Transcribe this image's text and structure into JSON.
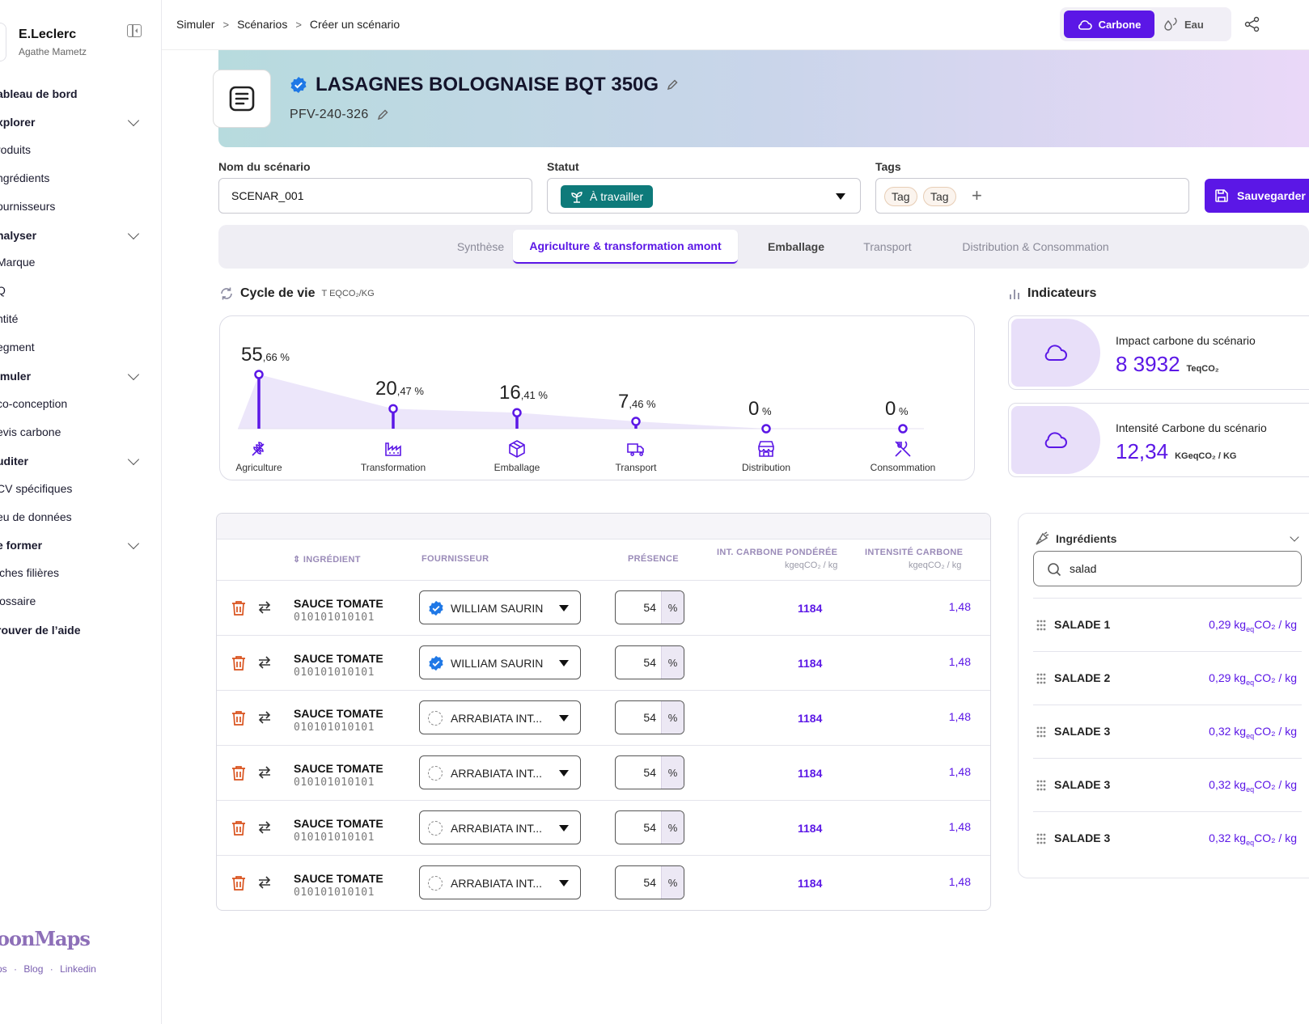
{
  "sidebar": {
    "brand": "E.Leclerc",
    "user": "Agathe Mametz",
    "items": [
      {
        "label": "ableau de bord",
        "type": "section-plain"
      },
      {
        "label": "xplorer",
        "type": "section"
      },
      {
        "label": "roduits",
        "type": "item"
      },
      {
        "label": "ngrédients",
        "type": "item"
      },
      {
        "label": "ournisseurs",
        "type": "item"
      },
      {
        "label": "nalyser",
        "type": "section"
      },
      {
        "label": "Marque",
        "type": "item"
      },
      {
        "label": "Q",
        "type": "item"
      },
      {
        "label": "ntité",
        "type": "item"
      },
      {
        "label": "egment",
        "type": "item"
      },
      {
        "label": "imuler",
        "type": "section"
      },
      {
        "label": "co-conception",
        "type": "item"
      },
      {
        "label": "evis carbone",
        "type": "item"
      },
      {
        "label": "uditer",
        "type": "section"
      },
      {
        "label": "CV spécifiques",
        "type": "item"
      },
      {
        "label": "eu de données",
        "type": "item"
      },
      {
        "label": "e former",
        "type": "section"
      },
      {
        "label": "iches filières",
        "type": "item"
      },
      {
        "label": "lossaire",
        "type": "item"
      },
      {
        "label": "rouver de l’aide",
        "type": "section-plain"
      }
    ],
    "footer_logo": "oonMaps",
    "footer_links": [
      "ps",
      "Blog",
      "Linkedin"
    ],
    "footer_sep": "·"
  },
  "topbar": {
    "breadcrumb": [
      "Simuler",
      "Scénarios",
      "Créer un scénario"
    ],
    "breadcrumb_sep": ">",
    "switch_carbone": "Carbone",
    "switch_eau": "Eau"
  },
  "product": {
    "title": "LASAGNES BOLOGNAISE BQT 350G",
    "code": "PFV-240-326"
  },
  "form": {
    "name_label": "Nom du scénario",
    "name_value": "SCENAR_001",
    "status_label": "Statut",
    "status_value": "À travailler",
    "tags_label": "Tags",
    "tags": [
      "Tag",
      "Tag"
    ],
    "tag_add": "+",
    "save_label": "Sauvegarder"
  },
  "tabs": [
    {
      "label": "Synthèse",
      "state": "muted"
    },
    {
      "label": "Agriculture & transformation amont",
      "state": "active"
    },
    {
      "label": "Emballage",
      "state": "dark"
    },
    {
      "label": "Transport",
      "state": "muted"
    },
    {
      "label": "Distribution & Consommation",
      "state": "muted"
    }
  ],
  "cycle": {
    "title": "Cycle de vie",
    "unit": "T EQCO₂/KG"
  },
  "chart_data": {
    "type": "area",
    "categories": [
      "Agriculture",
      "Transformation",
      "Emballage",
      "Transport",
      "Distribution",
      "Consommation"
    ],
    "values": [
      55.66,
      20.47,
      16.41,
      7.46,
      0,
      0
    ],
    "labels": [
      {
        "int": "55",
        "dec": ",66 %"
      },
      {
        "int": "20",
        "dec": ",47 %"
      },
      {
        "int": "16",
        "dec": ",41 %"
      },
      {
        "int": "7",
        "dec": ",46 %"
      },
      {
        "int": "0",
        "dec": " %"
      },
      {
        "int": "0",
        "dec": " %"
      }
    ],
    "icons": [
      "wheat-icon",
      "factory-icon",
      "package-icon",
      "truck-icon",
      "store-icon",
      "utensils-icon"
    ],
    "color": "#5b17e6",
    "fill": "#ece6fa"
  },
  "indicators": {
    "title": "Indicateurs",
    "cards": [
      {
        "label": "Impact carbone du scénario",
        "value": "8 3932",
        "unit": "TeqCO₂"
      },
      {
        "label": "Intensité Carbone du scénario",
        "value": "12,34",
        "unit": "KGeqCO₂ / KG"
      }
    ]
  },
  "table": {
    "headers": {
      "ingredient": "INGRÉDIENT",
      "fournisseur": "FOURNISSEUR",
      "presence": "PRÉSENCE",
      "pond": "INT. CARBONE PONDÉRÉE",
      "pond_unit": "kgeqCO₂  / kg",
      "intens": "INTENSITÉ CARBONE",
      "intens_unit": "kgeqCO₂ / kg"
    },
    "rows": [
      {
        "name": "SAUCE TOMATE",
        "code": "010101010101",
        "supplier": "WILLIAM SAURIN",
        "verified": true,
        "presence": "54",
        "pct": "%",
        "pond": "1184",
        "intens": "1,48"
      },
      {
        "name": "SAUCE TOMATE",
        "code": "010101010101",
        "supplier": "WILLIAM SAURIN",
        "verified": true,
        "presence": "54",
        "pct": "%",
        "pond": "1184",
        "intens": "1,48"
      },
      {
        "name": "SAUCE TOMATE",
        "code": "010101010101",
        "supplier": "ARRABIATA INT...",
        "verified": false,
        "presence": "54",
        "pct": "%",
        "pond": "1184",
        "intens": "1,48"
      },
      {
        "name": "SAUCE TOMATE",
        "code": "010101010101",
        "supplier": "ARRABIATA INT...",
        "verified": false,
        "presence": "54",
        "pct": "%",
        "pond": "1184",
        "intens": "1,48"
      },
      {
        "name": "SAUCE TOMATE",
        "code": "010101010101",
        "supplier": "ARRABIATA INT...",
        "verified": false,
        "presence": "54",
        "pct": "%",
        "pond": "1184",
        "intens": "1,48"
      },
      {
        "name": "SAUCE TOMATE",
        "code": "010101010101",
        "supplier": "ARRABIATA INT...",
        "verified": false,
        "presence": "54",
        "pct": "%",
        "pond": "1184",
        "intens": "1,48"
      }
    ]
  },
  "ingredients_panel": {
    "title": "Ingrédients",
    "search_value": "salad",
    "items": [
      {
        "name": "SALADE 1",
        "value": "0,29",
        "unit_a": " kg",
        "unit_sub": "eq",
        "unit_b": "CO₂ / kg"
      },
      {
        "name": "SALADE 2",
        "value": "0,29",
        "unit_a": " kg",
        "unit_sub": "eq",
        "unit_b": "CO₂ / kg"
      },
      {
        "name": "SALADE 3",
        "value": "0,32",
        "unit_a": " kg",
        "unit_sub": "eq",
        "unit_b": "CO₂ / kg"
      },
      {
        "name": "SALADE 3",
        "value": "0,32",
        "unit_a": " kg",
        "unit_sub": "eq",
        "unit_b": "CO₂ / kg"
      },
      {
        "name": "SALADE 3",
        "value": "0,32",
        "unit_a": " kg",
        "unit_sub": "eq",
        "unit_b": "CO₂ / kg"
      }
    ]
  },
  "colors": {
    "accent": "#5b17e6",
    "status": "#0e7a7a",
    "danger": "#d9531e"
  }
}
